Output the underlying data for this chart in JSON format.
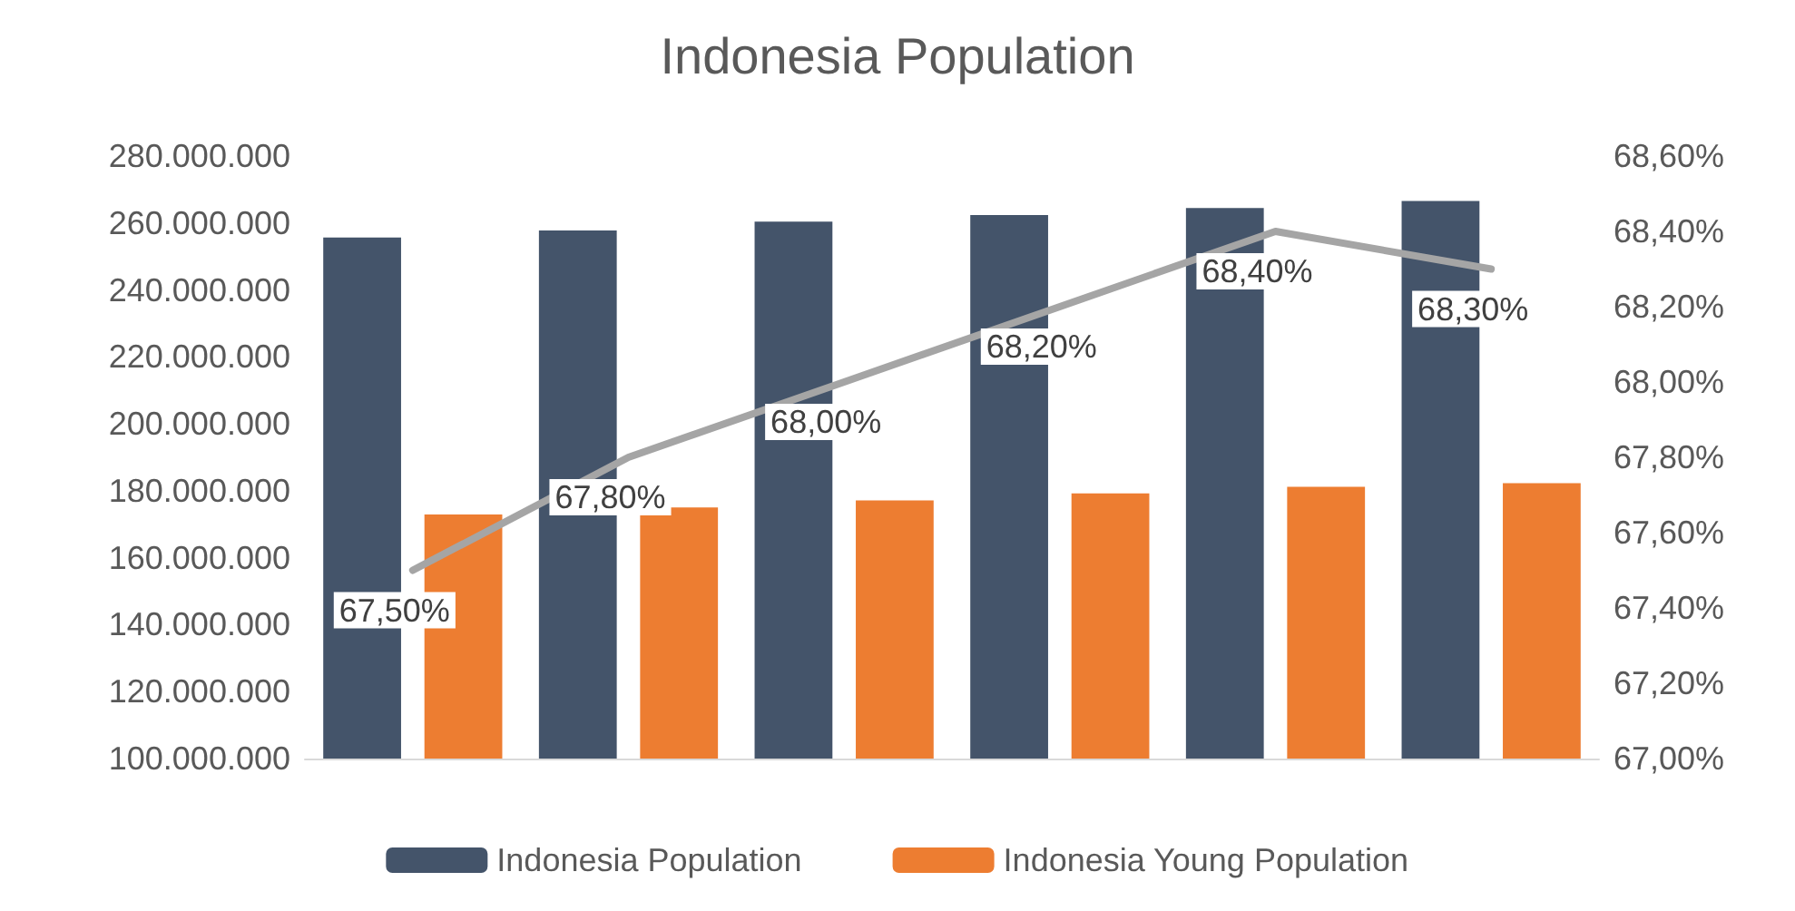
{
  "chart_data": {
    "type": "bar",
    "title": "Indonesia Population",
    "categories": [
      null,
      null,
      null,
      null,
      null,
      null
    ],
    "series": [
      {
        "name": "Indonesia Population",
        "color": "#44546a",
        "values": [
          255700000,
          257800000,
          260400000,
          262400000,
          264500000,
          266600000
        ]
      },
      {
        "name": "Indonesia Young Population",
        "color": "#ed7d31",
        "values": [
          172900000,
          175000000,
          177100000,
          179200000,
          181200000,
          182300000
        ]
      },
      {
        "type": "line",
        "axis": "y2",
        "color": "#a5a5a5",
        "values": [
          67.5,
          67.8,
          68.0,
          68.2,
          68.4,
          68.3
        ],
        "value_labels": [
          "67,50%",
          "67,80%",
          "68,00%",
          "68,20%",
          "68,40%",
          "68,30%"
        ],
        "marker": "none"
      }
    ],
    "ylim": [
      100000000,
      280000000
    ],
    "yticks": [
      {
        "value": 100000000,
        "label": "100.000.000"
      },
      {
        "value": 120000000,
        "label": "120.000.000"
      },
      {
        "value": 140000000,
        "label": "140.000.000"
      },
      {
        "value": 160000000,
        "label": "160.000.000"
      },
      {
        "value": 180000000,
        "label": "180.000.000"
      },
      {
        "value": 200000000,
        "label": "200.000.000"
      },
      {
        "value": 220000000,
        "label": "220.000.000"
      },
      {
        "value": 240000000,
        "label": "240.000.000"
      },
      {
        "value": 260000000,
        "label": "260.000.000"
      },
      {
        "value": 280000000,
        "label": "280.000.000"
      }
    ],
    "y2lim": [
      67.0,
      68.6
    ],
    "y2ticks": [
      {
        "value": 67.0,
        "label": "67,00%"
      },
      {
        "value": 67.2,
        "label": "67,20%"
      },
      {
        "value": 67.4,
        "label": "67,40%"
      },
      {
        "value": 67.6,
        "label": "67,60%"
      },
      {
        "value": 67.8,
        "label": "67,80%"
      },
      {
        "value": 68.0,
        "label": "68,00%"
      },
      {
        "value": 68.2,
        "label": "68,20%"
      },
      {
        "value": 68.4,
        "label": "68,40%"
      },
      {
        "value": 68.6,
        "label": "68,60%"
      }
    ],
    "grid": false,
    "legend": "bottom"
  }
}
